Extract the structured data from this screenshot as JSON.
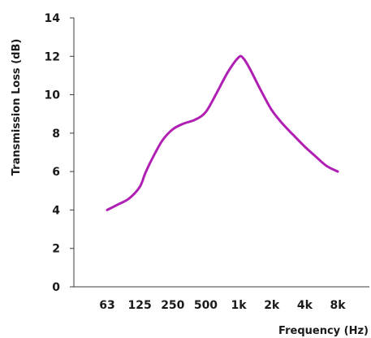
{
  "chart_data": {
    "type": "line",
    "title": "",
    "xlabel": "Frequency (Hz)",
    "ylabel": "Transmission Loss (dB)",
    "ylim": [
      0,
      14
    ],
    "yticks": [
      0,
      2,
      4,
      6,
      8,
      10,
      12,
      14
    ],
    "x_scale": "log",
    "xticks": [
      {
        "value": 63,
        "label": "63"
      },
      {
        "value": 125,
        "label": "125"
      },
      {
        "value": 250,
        "label": "250"
      },
      {
        "value": 500,
        "label": "500"
      },
      {
        "value": 1000,
        "label": "1k"
      },
      {
        "value": 2000,
        "label": "2k"
      },
      {
        "value": 4000,
        "label": "4k"
      },
      {
        "value": 8000,
        "label": "8k"
      }
    ],
    "xlim": [
      63,
      8000
    ],
    "grid": false,
    "legend": "none",
    "series": [
      {
        "color": "#b01fb3",
        "points": [
          {
            "x": 63,
            "y": 4.0
          },
          {
            "x": 80,
            "y": 4.3
          },
          {
            "x": 100,
            "y": 4.6
          },
          {
            "x": 125,
            "y": 5.2
          },
          {
            "x": 140,
            "y": 5.9
          },
          {
            "x": 160,
            "y": 6.6
          },
          {
            "x": 200,
            "y": 7.6
          },
          {
            "x": 250,
            "y": 8.2
          },
          {
            "x": 315,
            "y": 8.5
          },
          {
            "x": 400,
            "y": 8.7
          },
          {
            "x": 500,
            "y": 9.1
          },
          {
            "x": 630,
            "y": 10.1
          },
          {
            "x": 800,
            "y": 11.2
          },
          {
            "x": 1000,
            "y": 11.95
          },
          {
            "x": 1100,
            "y": 11.9
          },
          {
            "x": 1250,
            "y": 11.4
          },
          {
            "x": 1600,
            "y": 10.2
          },
          {
            "x": 2000,
            "y": 9.2
          },
          {
            "x": 2500,
            "y": 8.5
          },
          {
            "x": 3150,
            "y": 7.9
          },
          {
            "x": 4000,
            "y": 7.3
          },
          {
            "x": 5000,
            "y": 6.8
          },
          {
            "x": 6300,
            "y": 6.3
          },
          {
            "x": 8000,
            "y": 6.0
          }
        ]
      }
    ]
  }
}
